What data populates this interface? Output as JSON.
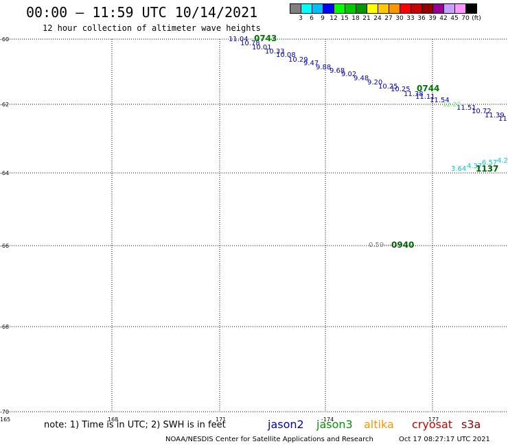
{
  "header": {
    "title": "00:00 – 11:59 UTC 10/14/2021",
    "subtitle": "12 hour collection of altimeter wave heights"
  },
  "legend": {
    "colors": [
      "#808080",
      "#00ffff",
      "#00bfff",
      "#0000ff",
      "#00ff00",
      "#00c800",
      "#009600",
      "#ffff00",
      "#ffc800",
      "#ff9600",
      "#ff0000",
      "#c80000",
      "#960000",
      "#960096",
      "#c8a0ff",
      "#ff96ff",
      "#000000"
    ],
    "labels": [
      "3",
      "6",
      "9",
      "12",
      "15",
      "18",
      "21",
      "24",
      "27",
      "30",
      "33",
      "36",
      "39",
      "42",
      "45",
      "70",
      "(ft)"
    ]
  },
  "map": {
    "lat_ticks": [
      "-60",
      "-62",
      "-64",
      "-66",
      "-68",
      "-70"
    ],
    "lon_ticks": [
      "165",
      "168",
      "171",
      "-174",
      "177"
    ],
    "lon_ticks_short": [
      "165",
      "168",
      "171",
      "-174",
      "177"
    ],
    "tracks": [
      {
        "name": "jason2",
        "color": "#0000cc",
        "points": [
          {
            "v": "11.04"
          },
          {
            "v": "10.78"
          },
          {
            "v": "10.01"
          },
          {
            "v": "10.33"
          },
          {
            "v": "10.08"
          },
          {
            "v": "10.29"
          },
          {
            "v": "9.47"
          },
          {
            "v": "9.88"
          },
          {
            "v": "9.68"
          },
          {
            "v": "9.02"
          },
          {
            "v": "9.48"
          },
          {
            "v": "9.20"
          },
          {
            "v": "10.25"
          },
          {
            "v": "10.25"
          },
          {
            "v": "11.38"
          },
          {
            "v": "11.11"
          },
          {
            "v": "11.54"
          },
          {
            "v": "11.51"
          },
          {
            "v": "10.72"
          },
          {
            "v": "11.39"
          },
          {
            "v": "11"
          }
        ]
      },
      {
        "name": "jason3-light",
        "color": "#66ee66",
        "points": [
          {
            "v": "12.22"
          }
        ]
      },
      {
        "name": "cyan-track",
        "color": "#00cccc",
        "points": [
          {
            "v": "3.64"
          },
          {
            "v": "4.37"
          },
          {
            "v": "6.57"
          },
          {
            "v": "4.2"
          }
        ]
      },
      {
        "name": "grey-track",
        "color": "#808080",
        "points": [
          {
            "v": "0.59"
          }
        ]
      }
    ],
    "time_labels": [
      "0743",
      "0744",
      "1137",
      "0940"
    ]
  },
  "footer": {
    "note": "note: 1) Time is in UTC; 2) SWH is in feet",
    "satellites": [
      {
        "name": "jason2",
        "color": "#0000cc"
      },
      {
        "name": "jason3",
        "color": "#009600"
      },
      {
        "name": "altika",
        "color": "#ff9600"
      },
      {
        "name": "cryosat",
        "color": "#cc0000"
      },
      {
        "name": "s3a",
        "color": "#960000"
      }
    ],
    "credit": "NOAA/NESDIS Center for Satellite Applications and Research",
    "timestamp": "Oct 17 08:27:17 UTC 2021"
  }
}
